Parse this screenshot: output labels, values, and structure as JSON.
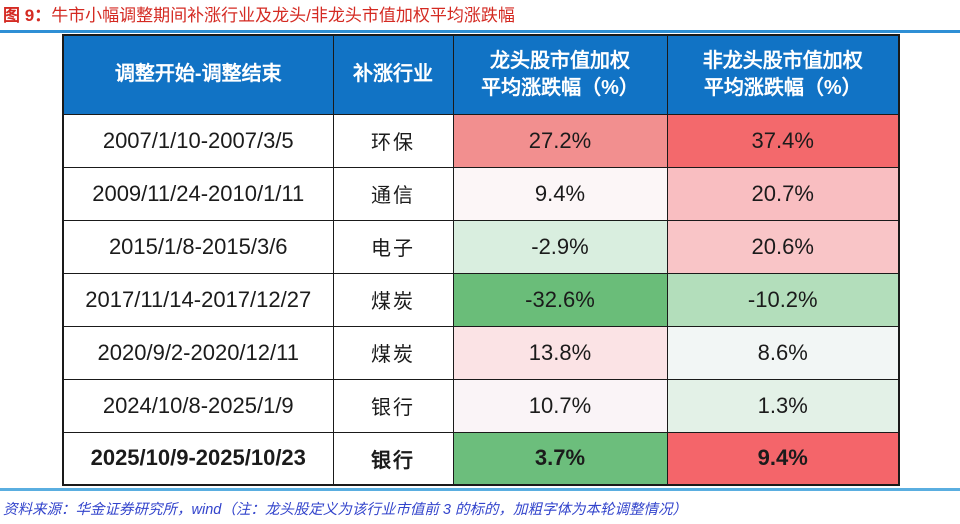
{
  "title": {
    "prefix": "图 9：",
    "text": "牛市小幅调整期间补涨行业及龙头/非龙头市值加权平均涨跌幅"
  },
  "table": {
    "header": {
      "col1": "调整开始-调整结束",
      "col2": "补涨行业",
      "col3_line1": "龙头股市值加权",
      "col3_line2": "平均涨跌幅（%）",
      "col4_line1": "非龙头股市值加权",
      "col4_line2": "平均涨跌幅（%）"
    },
    "rows": [
      {
        "period": "2007/1/10-2007/3/5",
        "industry": "环保",
        "leader": "27.2%",
        "leader_bg": "#f28f8f",
        "nonleader": "37.4%",
        "nonleader_bg": "#f3696c",
        "bold": false
      },
      {
        "period": "2009/11/24-2010/1/11",
        "industry": "通信",
        "leader": "9.4%",
        "leader_bg": "#fcf6f7",
        "nonleader": "20.7%",
        "nonleader_bg": "#f9bec1",
        "bold": false
      },
      {
        "period": "2015/1/8-2015/3/6",
        "industry": "电子",
        "leader": "-2.9%",
        "leader_bg": "#d9eedf",
        "nonleader": "20.6%",
        "nonleader_bg": "#f9c5c7",
        "bold": false
      },
      {
        "period": "2017/11/14-2017/12/27",
        "industry": "煤炭",
        "leader": "-32.6%",
        "leader_bg": "#6abd79",
        "nonleader": "-10.2%",
        "nonleader_bg": "#b3debb",
        "bold": false
      },
      {
        "period": "2020/9/2-2020/12/11",
        "industry": "煤炭",
        "leader": "13.8%",
        "leader_bg": "#fbe3e5",
        "nonleader": "8.6%",
        "nonleader_bg": "#f2f6f5",
        "bold": false
      },
      {
        "period": "2024/10/8-2025/1/9",
        "industry": "银行",
        "leader": "10.7%",
        "leader_bg": "#faf4f7",
        "nonleader": "1.3%",
        "nonleader_bg": "#e3f1e7",
        "bold": false
      },
      {
        "period": "2025/10/9-2025/10/23",
        "industry": "银行",
        "leader": "3.7%",
        "leader_bg": "#6cbe7c",
        "nonleader": "9.4%",
        "nonleader_bg": "#f4656a",
        "bold": true
      }
    ]
  },
  "footer": {
    "text": "资料来源：华金证券研究所，wind（注：龙头股定义为该行业市值前 3 的标的，加粗字体为本轮调整情况）"
  },
  "colors": {
    "title_red": "#d42a22",
    "rule_top": "#2e8fd5",
    "rule_bottom": "#5aaee0",
    "header_bg": "#1173c5",
    "header_fg": "#ffffff",
    "border": "#1a1a1a",
    "cell_fg": "#1b1b1b",
    "footer_blue": "#3344cc"
  },
  "chart_data": {
    "type": "table",
    "title": "图 9：牛市小幅调整期间补涨行业及龙头/非龙头市值加权平均涨跌幅",
    "columns": [
      "调整开始-调整结束",
      "补涨行业",
      "龙头股市值加权平均涨跌幅（%）",
      "非龙头股市值加权平均涨跌幅（%）"
    ],
    "rows": [
      [
        "2007/1/10-2007/3/5",
        "环保",
        27.2,
        37.4
      ],
      [
        "2009/11/24-2010/1/11",
        "通信",
        9.4,
        20.7
      ],
      [
        "2015/1/8-2015/3/6",
        "电子",
        -2.9,
        20.6
      ],
      [
        "2017/11/14-2017/12/27",
        "煤炭",
        -32.6,
        -10.2
      ],
      [
        "2020/9/2-2020/12/11",
        "煤炭",
        13.8,
        8.6
      ],
      [
        "2024/10/8-2025/1/9",
        "银行",
        10.7,
        1.3
      ],
      [
        "2025/10/9-2025/10/23",
        "银行",
        3.7,
        9.4
      ]
    ],
    "bold_row_index": 6,
    "cell_color_scale": "red = 高涨幅, 绿 = 负涨幅 (conditional formatting)",
    "source": "华金证券研究所，wind",
    "note": "龙头股定义为该行业市值前 3 的标的，加粗字体为本轮调整情况"
  }
}
